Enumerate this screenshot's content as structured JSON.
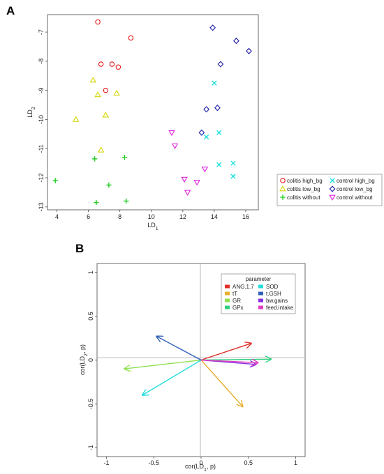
{
  "chart_data": [
    {
      "panel": "A",
      "type": "scatter",
      "xlabel": "LD1",
      "ylabel": "LD2",
      "xlim": [
        3.4,
        16.8
      ],
      "ylim": [
        -13.1,
        -6.4
      ],
      "y_reversed": true,
      "xticks": [
        4,
        6,
        8,
        10,
        12,
        14,
        16
      ],
      "yticks": [
        -7,
        -8,
        -9,
        -10,
        -11,
        -12,
        -13
      ],
      "legend_position": "right",
      "series": [
        {
          "name": "colitis high_bg",
          "marker": "circle",
          "color": "#e41a1c",
          "points": [
            [
              6.6,
              -6.65
            ],
            [
              8.7,
              -7.2
            ],
            [
              6.8,
              -8.1
            ],
            [
              7.5,
              -8.1
            ],
            [
              7.9,
              -8.2
            ],
            [
              7.1,
              -9.0
            ]
          ]
        },
        {
          "name": "colitis low_bg",
          "marker": "triangle-up",
          "color": "#d4d400",
          "points": [
            [
              6.3,
              -8.65
            ],
            [
              6.6,
              -9.15
            ],
            [
              7.8,
              -9.1
            ],
            [
              7.1,
              -9.85
            ],
            [
              5.2,
              -10.0
            ],
            [
              6.8,
              -11.05
            ]
          ]
        },
        {
          "name": "colitis without",
          "marker": "plus",
          "color": "#22cc22",
          "points": [
            [
              3.9,
              -12.1
            ],
            [
              6.4,
              -11.35
            ],
            [
              8.3,
              -11.3
            ],
            [
              7.3,
              -12.25
            ],
            [
              6.5,
              -12.85
            ],
            [
              8.4,
              -12.8
            ]
          ]
        },
        {
          "name": "control high_bg",
          "marker": "x",
          "color": "#11dddd",
          "points": [
            [
              14.0,
              -8.75
            ],
            [
              14.3,
              -10.45
            ],
            [
              13.5,
              -10.6
            ],
            [
              15.2,
              -11.5
            ],
            [
              14.3,
              -11.55
            ],
            [
              15.2,
              -11.95
            ]
          ]
        },
        {
          "name": "control low_bg",
          "marker": "diamond",
          "color": "#1a1aa6",
          "points": [
            [
              13.9,
              -6.85
            ],
            [
              15.4,
              -7.3
            ],
            [
              16.2,
              -7.65
            ],
            [
              14.4,
              -8.1
            ],
            [
              13.5,
              -9.65
            ],
            [
              14.2,
              -9.6
            ],
            [
              13.2,
              -10.45
            ]
          ]
        },
        {
          "name": "control without",
          "marker": "triangle-down",
          "color": "#dd22dd",
          "points": [
            [
              11.3,
              -10.45
            ],
            [
              11.5,
              -10.9
            ],
            [
              12.1,
              -12.05
            ],
            [
              12.3,
              -12.5
            ],
            [
              12.9,
              -12.15
            ],
            [
              13.4,
              -11.7
            ]
          ]
        }
      ]
    },
    {
      "panel": "B",
      "type": "biplot",
      "xlabel": "cor(LD1, p)",
      "ylabel": "cor(LD2, p)",
      "xlim": [
        -1.1,
        1.1
      ],
      "ylim": [
        -1.1,
        1.1
      ],
      "xticks": [
        -1,
        -0.5,
        0,
        0.5,
        1
      ],
      "yticks": [
        1,
        0.5,
        0,
        -0.5,
        -1
      ],
      "legend_title": "parameter",
      "legend_position": "top-right",
      "vectors": [
        {
          "name": "ANG.1.7",
          "color": "#e0302a",
          "x": 0.53,
          "y": 0.19
        },
        {
          "name": "tT",
          "color": "#e8b030",
          "x": 0.44,
          "y": -0.53
        },
        {
          "name": "GR",
          "color": "#8ee050",
          "x": -0.81,
          "y": -0.1
        },
        {
          "name": "GPx",
          "color": "#30d080",
          "x": 0.74,
          "y": 0.01
        },
        {
          "name": "SOD",
          "color": "#25dcdc",
          "x": -0.62,
          "y": -0.4
        },
        {
          "name": "t.GSH",
          "color": "#2f5fb8",
          "x": -0.47,
          "y": 0.27
        },
        {
          "name": "bw.gains",
          "color": "#8a2be2",
          "x": 0.58,
          "y": -0.05
        },
        {
          "name": "feed.intake",
          "color": "#e040c0",
          "x": 0.6,
          "y": -0.03
        }
      ]
    }
  ]
}
